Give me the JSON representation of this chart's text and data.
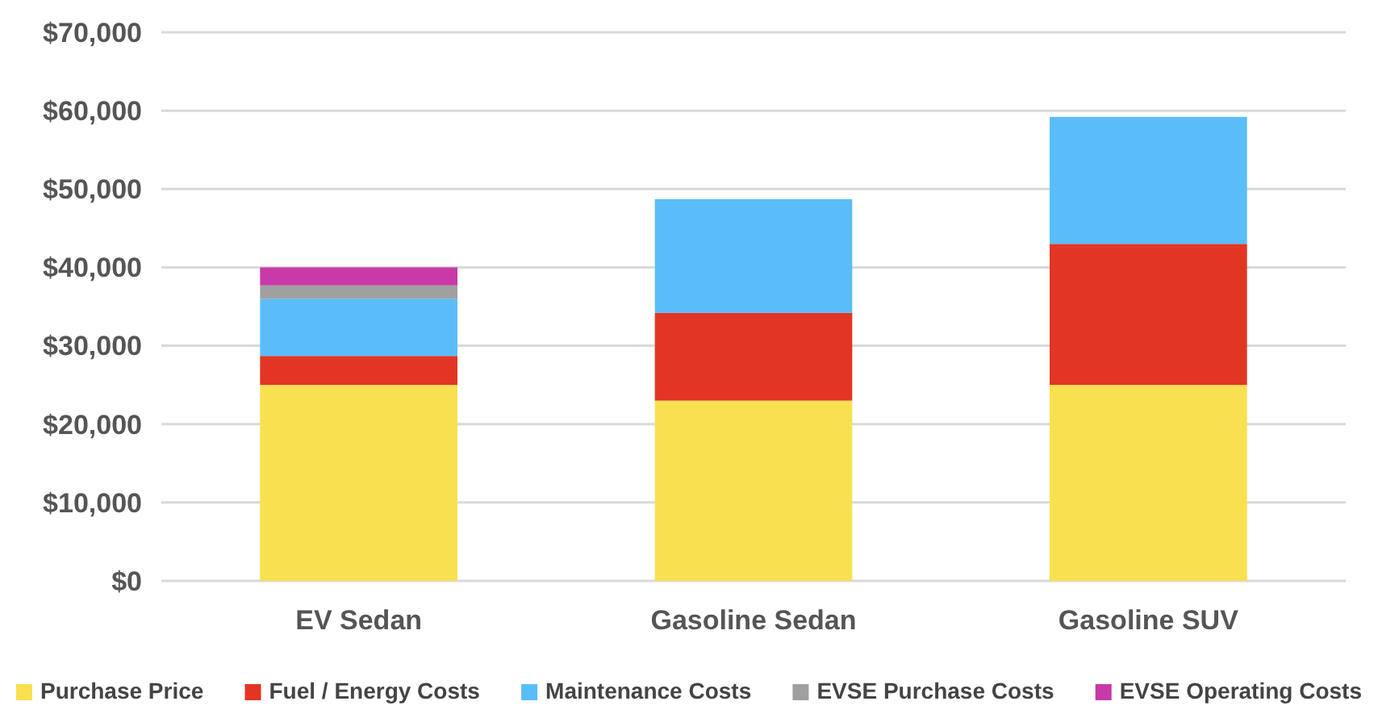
{
  "chart_data": {
    "type": "bar",
    "stacked": true,
    "categories": [
      "EV Sedan",
      "Gasoline Sedan",
      "Gasoline SUV"
    ],
    "series": [
      {
        "name": "Purchase Price",
        "color": "#f9e04f",
        "values": [
          25000,
          23000,
          25000
        ]
      },
      {
        "name": "Fuel / Energy Costs",
        "color": "#e33524",
        "values": [
          3700,
          11200,
          18000
        ]
      },
      {
        "name": "Maintenance Costs",
        "color": "#5abdfa",
        "values": [
          7300,
          14500,
          16200
        ]
      },
      {
        "name": "EVSE Purchase Costs",
        "color": "#9f9f9f",
        "values": [
          1700,
          0,
          0
        ]
      },
      {
        "name": "EVSE Operating Costs",
        "color": "#c73aa8",
        "values": [
          2300,
          0,
          0
        ]
      }
    ],
    "ylim": [
      0,
      70000
    ],
    "yticks": [
      {
        "value": 0,
        "label": "$0"
      },
      {
        "value": 10000,
        "label": "$10,000"
      },
      {
        "value": 20000,
        "label": "$20,000"
      },
      {
        "value": 30000,
        "label": "$30,000"
      },
      {
        "value": 40000,
        "label": "$40,000"
      },
      {
        "value": 50000,
        "label": "$50,000"
      },
      {
        "value": 60000,
        "label": "$60,000"
      },
      {
        "value": 70000,
        "label": "$70,000"
      }
    ],
    "grid": "y",
    "legend": "bottom"
  }
}
